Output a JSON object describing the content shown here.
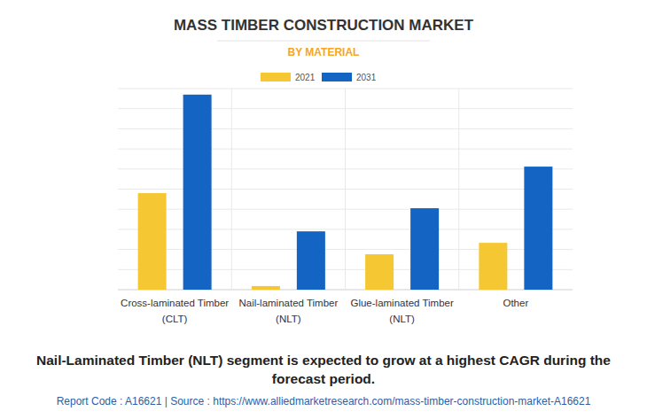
{
  "chart_data": {
    "type": "bar",
    "title": "MASS TIMBER CONSTRUCTION MARKET",
    "subtitle": "BY MATERIAL",
    "categories": [
      "Cross-laminated Timber (CLT)",
      "Nail-laminated Timber (NLT)",
      "Glue-laminated Timber (NLT)",
      "Other"
    ],
    "series": [
      {
        "name": "2021",
        "color": "#f5c732",
        "values": [
          4.8,
          0.18,
          1.76,
          2.33
        ]
      },
      {
        "name": "2031",
        "color": "#1464c4",
        "values": [
          9.7,
          2.9,
          4.05,
          6.12
        ]
      }
    ],
    "ylim": [
      0,
      10
    ],
    "yticks": [
      0,
      1,
      2,
      3,
      4,
      5,
      6,
      7,
      8,
      9,
      10
    ],
    "grid": true,
    "tick_labels": "x",
    "legend": "top",
    "annotations": [
      "Nail-Laminated Timber (NLT) segment is expected to grow at a highest CAGR during the forecast period.",
      "Report Code : A16621  |  Source : https://www.alliedmarketresearch.com/mass-timber-construction-market-A16621"
    ]
  }
}
